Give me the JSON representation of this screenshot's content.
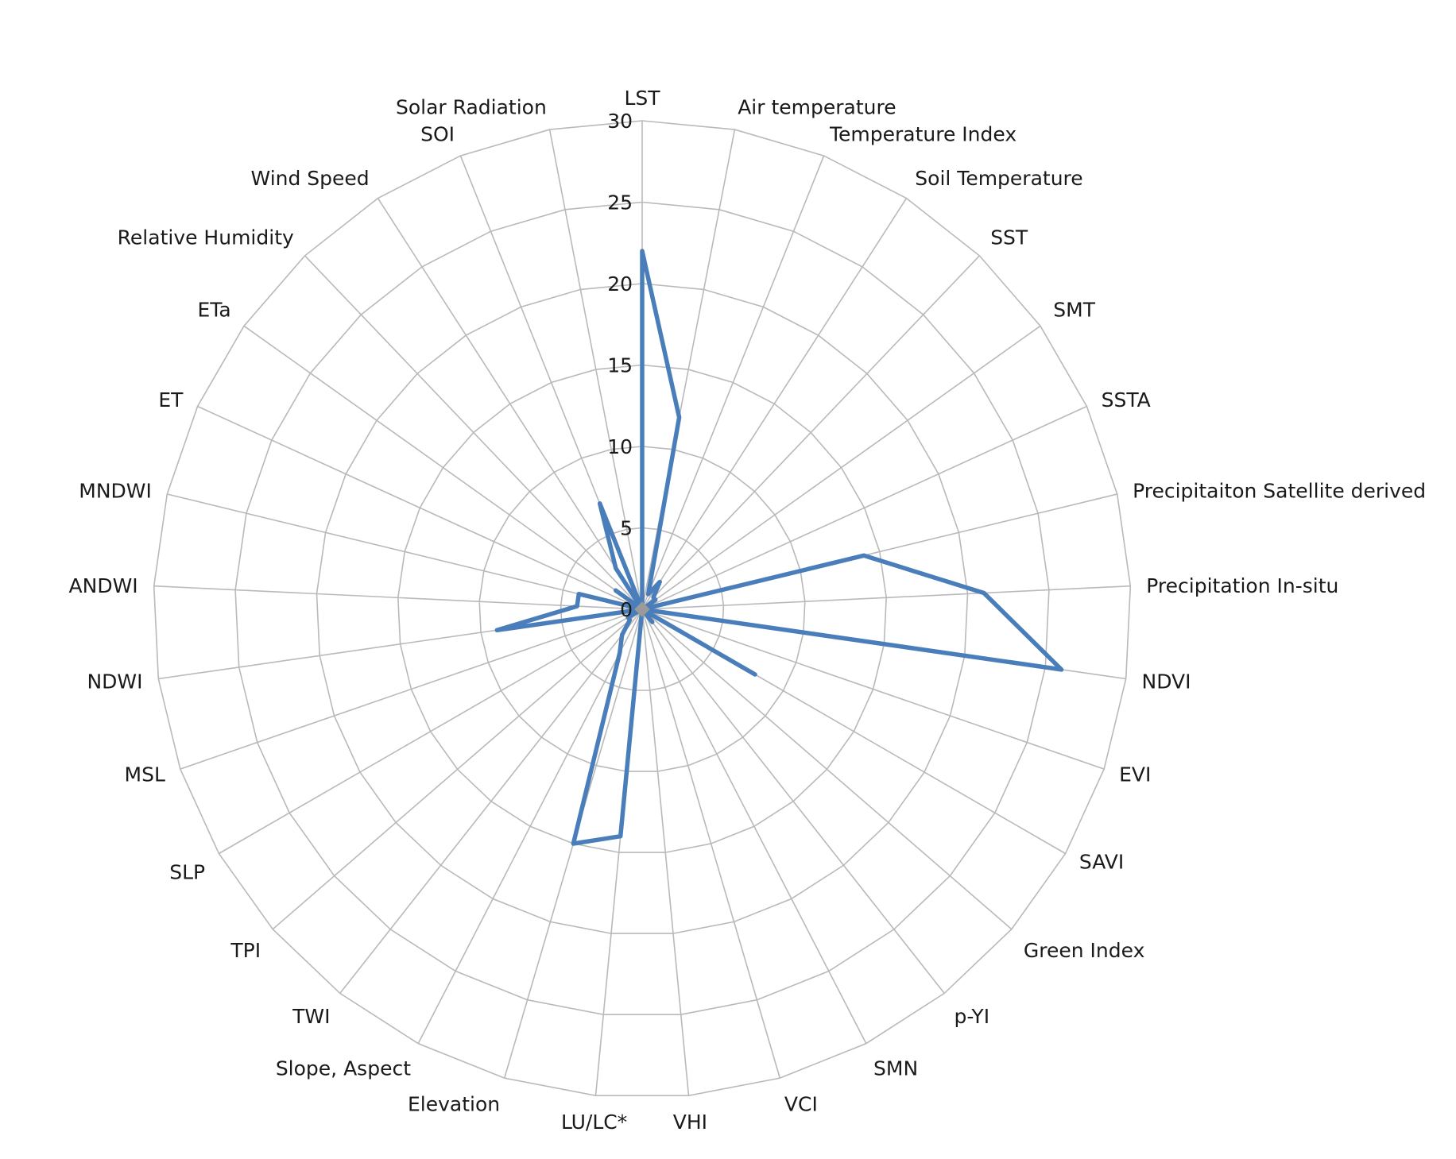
{
  "colors": {
    "series": "#4a7ebb",
    "grid": "#b9b9b9",
    "text": "#1a1a1a"
  },
  "chart_data": {
    "type": "radar",
    "title": "",
    "rlim": [
      0,
      30
    ],
    "ticks": [
      "0",
      "5",
      "10",
      "15",
      "20",
      "25",
      "30"
    ],
    "tick_values": [
      0,
      5,
      10,
      15,
      20,
      25,
      30
    ],
    "grid": true,
    "legend": "none",
    "categories": [
      "LST",
      "Air temperature",
      "Temperature Index",
      "Soil Temperature",
      "SST",
      "SMT",
      "SSTA",
      "Precipitaiton Satellite derived",
      "Precipitation In-situ",
      "NDVI",
      "EVI",
      "SAVI",
      "Green Index",
      "p-YI",
      "SMN",
      "VCI",
      "VHI",
      "LU/LC*",
      "Elevation",
      "Slope, Aspect",
      "TWI",
      "TPI",
      "SLP",
      "MSL",
      "NDWI",
      "ANDWI",
      "MNDWI",
      "ET",
      "ETa",
      "Relative Humidity",
      "Wind Speed",
      "SOI",
      "Solar Radiation"
    ],
    "series": [
      {
        "values": [
          22,
          12,
          1,
          2,
          1,
          1,
          0,
          14,
          21,
          26,
          0,
          8,
          0,
          1,
          0,
          0,
          0,
          14,
          15,
          3,
          2,
          1,
          1,
          0,
          9,
          4,
          4,
          0,
          2,
          0,
          3,
          7,
          0
        ]
      }
    ]
  }
}
